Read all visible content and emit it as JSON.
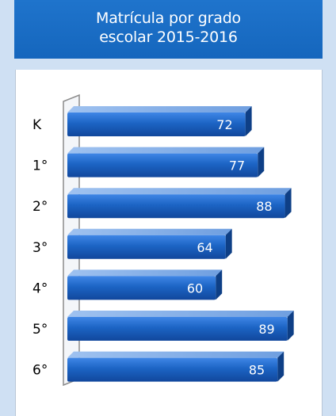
{
  "chart_data": {
    "type": "bar",
    "orientation": "horizontal",
    "title_line1": "Matrícula por grado",
    "title_line2": "escolar 2015-2016",
    "categories": [
      "K",
      "1°",
      "2°",
      "3°",
      "4°",
      "5°",
      "6°"
    ],
    "values": [
      72,
      77,
      88,
      64,
      60,
      89,
      85
    ],
    "xlim": [
      0,
      100
    ],
    "grid": false,
    "legend": "none",
    "colors": {
      "bar": "#1c64c4",
      "bar_dark": "#0e3f86",
      "bar_top": "#6f9fe0",
      "header": "#1a6dc6",
      "background": "#cfe0f3"
    }
  }
}
